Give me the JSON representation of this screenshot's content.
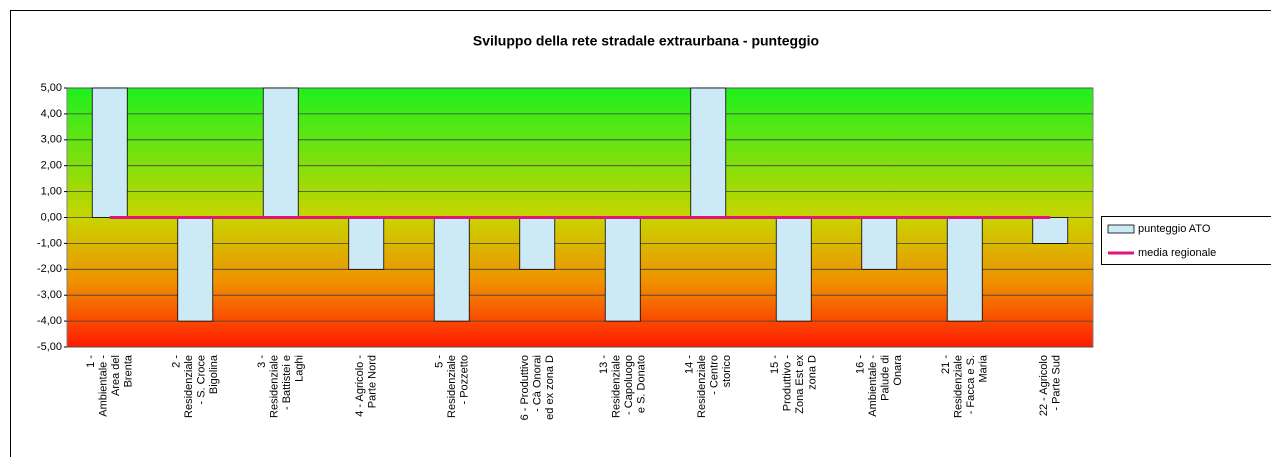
{
  "chart_data": {
    "type": "bar",
    "title": "Sviluppo della rete stradale extraurbana - punteggio",
    "categories": [
      "1 - Ambientale - Area del Brenta",
      "2 - Residenziale - S. Croce Bigolina",
      "3 - Residenziale - Battistei e Laghi",
      "4 - Agricolo - Parte Nord",
      "5 - Residenziale - Pozzetto",
      "6 - Produttivo - Cà Onorai ed ex zona D",
      "13 - Residenziale - Capoluogo e S. Donato",
      "14 - Residenziale - Centro storico",
      "15 - Produttivo - Zona Est ex zona D",
      "16 - Ambientale - Palude di Onara",
      "21 - Residenziale - Facca e S. Maria",
      "22 - Agricolo - Parte Sud"
    ],
    "series": [
      {
        "name": "punteggio ATO",
        "type": "bar",
        "color": "#cce9f6",
        "values": [
          5,
          -4,
          5,
          -2,
          -4,
          -2,
          -4,
          5,
          -4,
          -2,
          -4,
          -1
        ]
      },
      {
        "name": "media regionale",
        "type": "line",
        "color": "#e0157c",
        "values": [
          0,
          0,
          0,
          0,
          0,
          0,
          0,
          0,
          0,
          0,
          0,
          0
        ]
      }
    ],
    "ylim": [
      -5,
      5
    ],
    "yticks": [
      {
        "value": -5,
        "label": "-5,00"
      },
      {
        "value": -4,
        "label": "-4,00"
      },
      {
        "value": -3,
        "label": "-3,00"
      },
      {
        "value": -2,
        "label": "-2,00"
      },
      {
        "value": -1,
        "label": "-1,00"
      },
      {
        "value": 0,
        "label": "0,00"
      },
      {
        "value": 1,
        "label": "1,00"
      },
      {
        "value": 2,
        "label": "2,00"
      },
      {
        "value": 3,
        "label": "3,00"
      },
      {
        "value": 4,
        "label": "4,00"
      },
      {
        "value": 5,
        "label": "5,00"
      }
    ],
    "grid": true,
    "legend": "right"
  }
}
